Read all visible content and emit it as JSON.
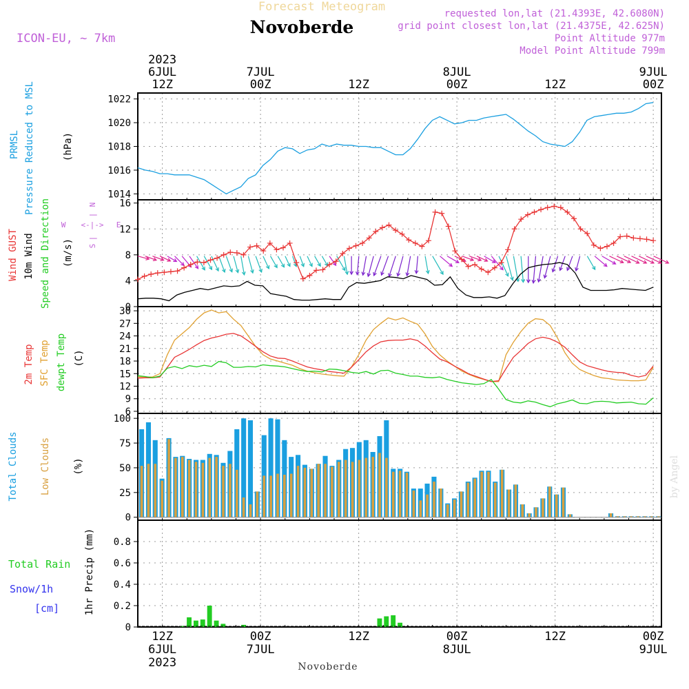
{
  "header": {
    "model": "ICON-EU, ~ 7km",
    "title_top": "Forecast Meteogram",
    "station": "Novoberde",
    "requested": "requested lon,lat (21.4393E, 42.6080N)",
    "grid_point": "grid point closest lon,lat (21.4375E, 42.625N)",
    "point_alt": "Point Altitude 977m",
    "model_alt": "Model Point Altitude 799m",
    "footer_station": "Novoberde",
    "watermark": "by Angel"
  },
  "colors": {
    "pressure": "#1a9fe0",
    "gust": "#e83434",
    "wind": "#000000",
    "temp2m": "#e83434",
    "sfc": "#e0a030",
    "dew": "#22cc22",
    "total_cloud": "#1a9fe0",
    "low_cloud": "#d8a040",
    "rain": "#22cc22",
    "snow": "#3333ee",
    "label_purple": "#c060d8",
    "grid": "#9a9a9a"
  },
  "panel_labels": {
    "pressure": [
      "PRMSL",
      "Pressure Reduced to MSL"
    ],
    "pressure_unit": "(hPa)",
    "wind": [
      "Wind GUST",
      "10m Wind",
      "Speed and Direction"
    ],
    "wind_unit": "(m/s)",
    "compass_w": "W",
    "compass_e": "E",
    "compass_arrow": "<-|->",
    "compass_n": "N",
    "compass_s": "S",
    "compass_vbar": "|",
    "temp": [
      "2m Temp",
      "SFC Temp",
      "dewpt Temp"
    ],
    "temp_unit": "(C)",
    "cloud": [
      "Total Clouds",
      "Low Clouds"
    ],
    "cloud_unit": "(%)",
    "rain": [
      "Total Rain",
      "Snow/1h",
      "[cm]"
    ],
    "rain_unit": "1hr Precip (mm)"
  },
  "chart_data": {
    "type": "line",
    "title": "Forecast Meteogram Novoberde",
    "time_axis": {
      "start_hour_offset": -3,
      "end_hour_offset": 61,
      "unit": "hours from 2023-07-06 12Z",
      "top_ticks": [
        {
          "h": 0,
          "lines": [
            "2023",
            "6JUL",
            "12Z"
          ]
        },
        {
          "h": 12,
          "lines": [
            "7JUL",
            "00Z"
          ]
        },
        {
          "h": 24,
          "lines": [
            "12Z"
          ]
        },
        {
          "h": 36,
          "lines": [
            "8JUL",
            "00Z"
          ]
        },
        {
          "h": 48,
          "lines": [
            "12Z"
          ]
        },
        {
          "h": 60,
          "lines": [
            "9JUL",
            "00Z"
          ]
        }
      ],
      "bottom_ticks": [
        {
          "h": 0,
          "lines": [
            "12Z",
            "6JUL",
            "2023"
          ]
        },
        {
          "h": 12,
          "lines": [
            "00Z",
            "7JUL"
          ]
        },
        {
          "h": 24,
          "lines": [
            "12Z"
          ]
        },
        {
          "h": 36,
          "lines": [
            "00Z",
            "8JUL"
          ]
        },
        {
          "h": 48,
          "lines": [
            "12Z"
          ]
        },
        {
          "h": 60,
          "lines": [
            "00Z",
            "9JUL"
          ]
        }
      ]
    },
    "pressure": {
      "ylim": [
        1013.5,
        1022.5
      ],
      "ticks": [
        1014,
        1016,
        1018,
        1020,
        1022
      ],
      "values": [
        1016.2,
        1016.0,
        1015.9,
        1015.7,
        1015.7,
        1015.6,
        1015.6,
        1015.6,
        1015.4,
        1015.2,
        1014.8,
        1014.4,
        1014.0,
        1014.3,
        1014.6,
        1015.3,
        1015.6,
        1016.4,
        1016.9,
        1017.6,
        1017.9,
        1017.8,
        1017.4,
        1017.7,
        1017.8,
        1018.2,
        1018.0,
        1018.2,
        1018.1,
        1018.1,
        1018.0,
        1018.0,
        1017.9,
        1017.9,
        1017.6,
        1017.3,
        1017.3,
        1017.8,
        1018.6,
        1019.5,
        1020.2,
        1020.5,
        1020.2,
        1019.9,
        1020.0,
        1020.2,
        1020.2,
        1020.4,
        1020.5,
        1020.6,
        1020.7,
        1020.3,
        1019.8,
        1019.3,
        1018.9,
        1018.4,
        1018.2,
        1018.1,
        1018.0,
        1018.4,
        1019.2,
        1020.2,
        1020.5,
        1020.6,
        1020.7,
        1020.8,
        1020.8,
        1020.9,
        1021.2,
        1021.6,
        1021.7
      ]
    },
    "wind": {
      "ylim": [
        0,
        16.5
      ],
      "ticks": [
        0,
        4,
        8,
        12,
        16
      ],
      "gust": [
        4.2,
        4.7,
        5.0,
        5.2,
        5.3,
        5.4,
        5.5,
        6.0,
        6.5,
        6.9,
        6.8,
        7.2,
        7.5,
        8.0,
        8.4,
        8.3,
        8.0,
        9.2,
        9.4,
        8.6,
        9.8,
        8.8,
        9.1,
        9.8,
        6.8,
        4.3,
        4.8,
        5.6,
        5.7,
        6.5,
        7.0,
        8.2,
        9.0,
        9.4,
        9.8,
        10.6,
        11.6,
        12.2,
        12.6,
        11.8,
        11.2,
        10.3,
        9.8,
        9.3,
        10.2,
        14.6,
        14.4,
        12.4,
        8.6,
        7.3,
        6.2,
        6.5,
        5.8,
        5.3,
        6.0,
        6.8,
        8.8,
        12.0,
        13.5,
        14.2,
        14.6,
        15.0,
        15.3,
        15.5,
        15.3,
        14.6,
        13.6,
        12.0,
        11.3,
        9.5,
        9.0,
        9.3,
        9.8,
        10.8,
        10.9,
        10.6,
        10.5,
        10.4,
        10.2
      ],
      "speed": [
        1.2,
        1.3,
        1.3,
        1.2,
        0.9,
        1.8,
        2.2,
        2.5,
        2.8,
        2.6,
        2.9,
        3.2,
        3.1,
        3.2,
        3.9,
        3.3,
        3.2,
        2.0,
        1.8,
        1.6,
        1.1,
        1.0,
        1.0,
        1.1,
        1.2,
        1.1,
        1.1,
        3.0,
        3.7,
        3.6,
        3.8,
        4.0,
        4.6,
        4.5,
        4.3,
        4.8,
        4.5,
        4.2,
        3.3,
        3.4,
        4.6,
        2.8,
        1.8,
        1.4,
        1.4,
        1.5,
        1.3,
        1.7,
        3.5,
        5.0,
        6.0,
        6.3,
        6.5,
        6.6,
        6.8,
        6.5,
        5.2,
        3.0,
        2.5,
        2.5,
        2.5,
        2.6,
        2.8,
        2.7,
        2.6,
        2.5,
        3.0
      ],
      "direction_deg": [
        285,
        290,
        290,
        295,
        300,
        315,
        320,
        325,
        330,
        330,
        335,
        340,
        340,
        345,
        350,
        345,
        340,
        335,
        330,
        330,
        335,
        340,
        340,
        335,
        330,
        330,
        325,
        330,
        350,
        0,
        5,
        10,
        15,
        20,
        20,
        18,
        15,
        10,
        5,
        350,
        330,
        310,
        300,
        295,
        290,
        290,
        295,
        300,
        320,
        335,
        345,
        350,
        355,
        0,
        5,
        10,
        15,
        18,
        20,
        20,
        15,
        330,
        310,
        300,
        295,
        295,
        295,
        295,
        295,
        295,
        295
      ]
    },
    "temperature": {
      "ylim": [
        5.5,
        31
      ],
      "ticks": [
        6,
        9,
        12,
        15,
        18,
        21,
        24,
        27,
        30
      ],
      "t2m": [
        13.9,
        14.0,
        14.0,
        14.2,
        16.5,
        18.9,
        19.8,
        20.8,
        21.9,
        22.9,
        23.5,
        23.9,
        24.4,
        24.6,
        24.0,
        22.8,
        21.5,
        20.2,
        19.2,
        18.7,
        18.6,
        18.0,
        17.3,
        16.6,
        16.2,
        15.9,
        15.5,
        15.3,
        15.1,
        16.5,
        18.3,
        20.2,
        21.6,
        22.6,
        22.9,
        23.0,
        23.0,
        23.3,
        22.9,
        21.6,
        20.0,
        18.5,
        17.8,
        16.8,
        15.9,
        14.9,
        14.3,
        13.7,
        13.1,
        13.3,
        16.2,
        18.9,
        20.5,
        22.2,
        23.3,
        23.7,
        23.3,
        22.5,
        21.3,
        19.5,
        17.8,
        16.9,
        16.4,
        15.9,
        15.5,
        15.3,
        15.2,
        14.6,
        14.2,
        14.6,
        16.8
      ],
      "sfc": [
        14.2,
        14.2,
        14.2,
        15.0,
        19.5,
        23.0,
        24.5,
        26.0,
        28.0,
        29.5,
        30.2,
        29.5,
        29.8,
        28.0,
        26.5,
        24.0,
        21.5,
        19.5,
        18.5,
        18.0,
        17.5,
        17.0,
        16.2,
        15.6,
        15.2,
        14.9,
        14.7,
        14.5,
        14.4,
        16.5,
        19.5,
        23.0,
        25.5,
        27.0,
        28.3,
        27.8,
        28.3,
        27.5,
        26.8,
        24.5,
        21.5,
        19.5,
        18.0,
        16.8,
        15.6,
        14.8,
        14.1,
        13.6,
        13.1,
        13.1,
        19.5,
        22.5,
        25.0,
        27.0,
        28.1,
        27.9,
        26.5,
        23.5,
        20.0,
        17.5,
        16.0,
        15.2,
        14.5,
        14.0,
        13.8,
        13.5,
        13.4,
        13.3,
        13.3,
        13.5,
        16.5
      ],
      "dew": [
        14.5,
        14.3,
        14.0,
        14.4,
        16.3,
        16.7,
        16.2,
        16.9,
        16.6,
        17.0,
        16.7,
        17.9,
        17.6,
        16.5,
        16.5,
        16.7,
        16.6,
        17.1,
        16.9,
        16.8,
        16.6,
        16.2,
        15.8,
        15.5,
        15.6,
        15.4,
        16.1,
        16.0,
        15.7,
        15.3,
        15.1,
        15.5,
        14.9,
        15.7,
        15.8,
        15.1,
        14.8,
        14.4,
        14.4,
        14.1,
        14.0,
        14.2,
        13.6,
        13.2,
        12.8,
        12.6,
        12.4,
        12.6,
        13.6,
        11.3,
        8.8,
        8.2,
        8.0,
        8.5,
        8.2,
        7.6,
        7.1,
        7.8,
        8.2,
        8.7,
        7.9,
        7.8,
        8.3,
        8.4,
        8.3,
        8.0,
        8.1,
        8.2,
        7.8,
        7.7,
        9.2
      ]
    },
    "clouds": {
      "ylim": [
        -3,
        105
      ],
      "ticks": [
        0,
        25,
        50,
        75,
        100
      ],
      "total": [
        89,
        96,
        78,
        39,
        80,
        61,
        62,
        59,
        58,
        58,
        64,
        63,
        55,
        67,
        89,
        100,
        98,
        26,
        83,
        100,
        99,
        78,
        61,
        63,
        53,
        49,
        54,
        62,
        52,
        58,
        69,
        70,
        76,
        78,
        66,
        82,
        98,
        49,
        49,
        46,
        29,
        29,
        34,
        41,
        29,
        14,
        19,
        26,
        36,
        40,
        47,
        47,
        36,
        48,
        28,
        33,
        13,
        4,
        10,
        19,
        31,
        23,
        30,
        3,
        0,
        0,
        0,
        0,
        0,
        4,
        1,
        1,
        1,
        1,
        1,
        1,
        1
      ],
      "low": [
        52,
        54,
        54,
        37,
        79,
        60,
        61,
        58,
        56,
        55,
        60,
        61,
        52,
        54,
        48,
        20,
        13,
        26,
        42,
        42,
        44,
        43,
        44,
        52,
        50,
        49,
        54,
        54,
        51,
        56,
        58,
        56,
        58,
        60,
        61,
        65,
        60,
        46,
        47,
        45,
        27,
        17,
        23,
        36,
        29,
        13,
        18,
        26,
        35,
        39,
        46,
        46,
        35,
        48,
        28,
        33,
        13,
        4,
        10,
        19,
        31,
        23,
        30,
        3,
        0,
        0,
        0,
        0,
        0,
        4,
        1,
        1,
        1,
        1,
        1,
        1,
        1
      ]
    },
    "precip": {
      "ylim": [
        0,
        1.0
      ],
      "ticks": [
        0,
        0.2,
        0.4,
        0.6,
        0.8
      ],
      "tick_labels": [
        "0",
        "0.2",
        "0.4",
        "0.6",
        "0.8"
      ],
      "rain": [
        0,
        0,
        0,
        0,
        0,
        0,
        0.01,
        0.09,
        0.06,
        0.07,
        0.2,
        0.06,
        0.03,
        0,
        0,
        0.02,
        0,
        0,
        0,
        0,
        0,
        0,
        0,
        0,
        0,
        0,
        0,
        0,
        0,
        0,
        0,
        0,
        0,
        0,
        0,
        0.08,
        0.1,
        0.11,
        0.04,
        0,
        0,
        0,
        0,
        0,
        0,
        0,
        0,
        0,
        0,
        0,
        0,
        0,
        0,
        0,
        0,
        0,
        0,
        0,
        0,
        0,
        0,
        0,
        0,
        0,
        0,
        0,
        0,
        0,
        0,
        0,
        0,
        0,
        0,
        0,
        0,
        0,
        0
      ]
    }
  }
}
